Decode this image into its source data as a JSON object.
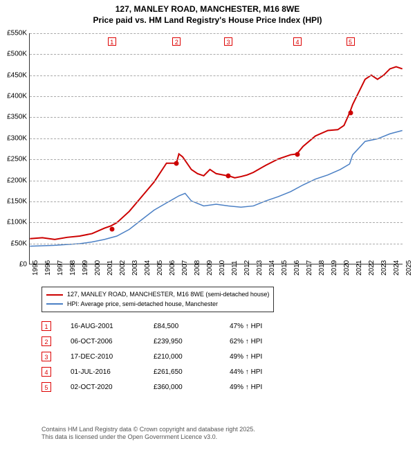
{
  "title": {
    "line1": "127, MANLEY ROAD, MANCHESTER, M16 8WE",
    "line2": "Price paid vs. HM Land Registry's House Price Index (HPI)"
  },
  "chart": {
    "type": "line",
    "background_color": "#ffffff",
    "grid_color": "#aaaaaa",
    "xlim": [
      1995,
      2025
    ],
    "ylim": [
      0,
      550
    ],
    "yticks": [
      0,
      50,
      100,
      150,
      200,
      250,
      300,
      350,
      400,
      450,
      500,
      550
    ],
    "ytick_labels": [
      "£0",
      "£50K",
      "£100K",
      "£150K",
      "£200K",
      "£250K",
      "£300K",
      "£350K",
      "£400K",
      "£450K",
      "£500K",
      "£550K"
    ],
    "xticks": [
      1995,
      1996,
      1997,
      1998,
      1999,
      2000,
      2001,
      2002,
      2003,
      2004,
      2005,
      2006,
      2007,
      2008,
      2009,
      2010,
      2011,
      2012,
      2013,
      2014,
      2015,
      2016,
      2017,
      2018,
      2019,
      2020,
      2021,
      2022,
      2023,
      2024,
      2025
    ],
    "label_fontsize": 10,
    "title_fontsize": 12,
    "series": [
      {
        "name": "127, MANLEY ROAD, MANCHESTER, M16 8WE (semi-detached house)",
        "color": "#cc0000",
        "line_width": 2,
        "data": [
          [
            1995,
            60
          ],
          [
            1996,
            62
          ],
          [
            1997,
            58
          ],
          [
            1998,
            63
          ],
          [
            1999,
            66
          ],
          [
            2000,
            72
          ],
          [
            2001,
            85
          ],
          [
            2001.5,
            90
          ],
          [
            2002,
            98
          ],
          [
            2003,
            125
          ],
          [
            2004,
            160
          ],
          [
            2005,
            195
          ],
          [
            2006,
            240
          ],
          [
            2006.8,
            240
          ],
          [
            2007,
            262
          ],
          [
            2007.3,
            255
          ],
          [
            2008,
            225
          ],
          [
            2008.5,
            215
          ],
          [
            2009,
            210
          ],
          [
            2009.5,
            225
          ],
          [
            2010,
            215
          ],
          [
            2010.9,
            210
          ],
          [
            2011,
            210
          ],
          [
            2011.5,
            205
          ],
          [
            2012,
            208
          ],
          [
            2012.5,
            212
          ],
          [
            2013,
            218
          ],
          [
            2014,
            235
          ],
          [
            2015,
            250
          ],
          [
            2016,
            260
          ],
          [
            2016.5,
            262
          ],
          [
            2017,
            280
          ],
          [
            2018,
            305
          ],
          [
            2019,
            318
          ],
          [
            2019.8,
            320
          ],
          [
            2020.3,
            330
          ],
          [
            2020.75,
            360
          ],
          [
            2021,
            380
          ],
          [
            2021.5,
            410
          ],
          [
            2022,
            440
          ],
          [
            2022.5,
            450
          ],
          [
            2023,
            440
          ],
          [
            2023.5,
            450
          ],
          [
            2024,
            465
          ],
          [
            2024.5,
            470
          ],
          [
            2025,
            465
          ]
        ]
      },
      {
        "name": "HPI: Average price, semi-detached house, Manchester",
        "color": "#4a7fc4",
        "line_width": 1.5,
        "data": [
          [
            1995,
            42
          ],
          [
            1996,
            43
          ],
          [
            1997,
            44
          ],
          [
            1998,
            46
          ],
          [
            1999,
            48
          ],
          [
            2000,
            52
          ],
          [
            2001,
            58
          ],
          [
            2002,
            66
          ],
          [
            2003,
            82
          ],
          [
            2004,
            105
          ],
          [
            2005,
            128
          ],
          [
            2006,
            145
          ],
          [
            2007,
            162
          ],
          [
            2007.5,
            168
          ],
          [
            2008,
            150
          ],
          [
            2009,
            138
          ],
          [
            2010,
            142
          ],
          [
            2011,
            138
          ],
          [
            2012,
            135
          ],
          [
            2013,
            138
          ],
          [
            2014,
            150
          ],
          [
            2015,
            160
          ],
          [
            2016,
            172
          ],
          [
            2017,
            188
          ],
          [
            2018,
            202
          ],
          [
            2019,
            212
          ],
          [
            2020,
            225
          ],
          [
            2020.75,
            238
          ],
          [
            2021,
            260
          ],
          [
            2022,
            292
          ],
          [
            2023,
            298
          ],
          [
            2024,
            310
          ],
          [
            2025,
            318
          ]
        ]
      }
    ],
    "sale_points": [
      {
        "n": "1",
        "year": 2001.6,
        "value": 84.5
      },
      {
        "n": "2",
        "year": 2006.8,
        "value": 239.95
      },
      {
        "n": "3",
        "year": 2010.95,
        "value": 210
      },
      {
        "n": "4",
        "year": 2016.5,
        "value": 261.65
      },
      {
        "n": "5",
        "year": 2020.75,
        "value": 360
      }
    ],
    "marker_color": "#cc0000",
    "marker_border": "#cc0000",
    "marker_box_bg": "#ffffff"
  },
  "legend": {
    "items": [
      {
        "color": "#cc0000",
        "label": "127, MANLEY ROAD, MANCHESTER, M16 8WE (semi-detached house)"
      },
      {
        "color": "#4a7fc4",
        "label": "HPI: Average price, semi-detached house, Manchester"
      }
    ]
  },
  "table": {
    "rows": [
      {
        "n": "1",
        "date": "16-AUG-2001",
        "price": "£84,500",
        "pct": "47% ↑ HPI"
      },
      {
        "n": "2",
        "date": "06-OCT-2006",
        "price": "£239,950",
        "pct": "62% ↑ HPI"
      },
      {
        "n": "3",
        "date": "17-DEC-2010",
        "price": "£210,000",
        "pct": "49% ↑ HPI"
      },
      {
        "n": "4",
        "date": "01-JUL-2016",
        "price": "£261,650",
        "pct": "44% ↑ HPI"
      },
      {
        "n": "5",
        "date": "02-OCT-2020",
        "price": "£360,000",
        "pct": "49% ↑ HPI"
      }
    ]
  },
  "footer": {
    "line1": "Contains HM Land Registry data © Crown copyright and database right 2025.",
    "line2": "This data is licensed under the Open Government Licence v3.0."
  }
}
